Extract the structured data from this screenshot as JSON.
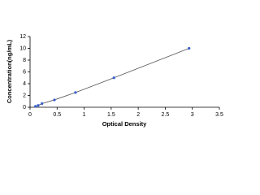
{
  "chart_data": {
    "type": "scatter",
    "line": true,
    "x_label": "Optical Density",
    "y_label": "Concentration(ng/mL)",
    "x": [
      0.1,
      0.15,
      0.22,
      0.45,
      0.84,
      1.55,
      2.94
    ],
    "values": [
      0.156,
      0.3125,
      0.625,
      1.25,
      2.5,
      5,
      10
    ],
    "color": "#3a5fcd",
    "line_color": "#555555",
    "xlim": [
      0,
      3.5
    ],
    "xticks": [
      0,
      0.5,
      1,
      1.5,
      2,
      2.5,
      3,
      3.5
    ],
    "ylim": [
      0,
      12
    ],
    "yticks": [
      0,
      2,
      4,
      6,
      8,
      10,
      12
    ],
    "grid": false
  }
}
